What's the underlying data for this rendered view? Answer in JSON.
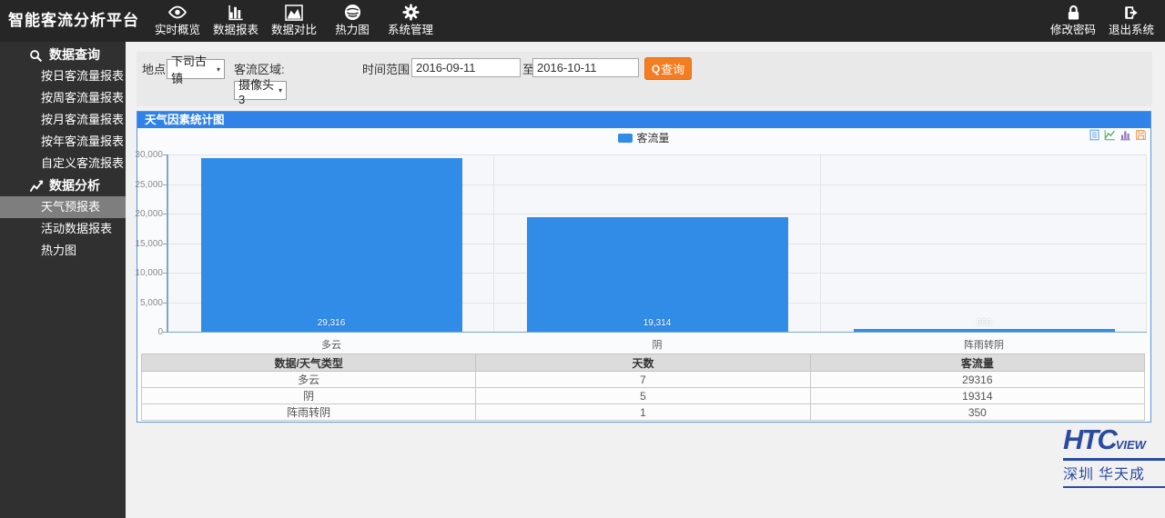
{
  "app": {
    "title": "智能客流分析平台"
  },
  "topnav": {
    "items": [
      {
        "id": "realtime",
        "label": "实时概览",
        "icon": "eye-icon"
      },
      {
        "id": "reports",
        "label": "数据报表",
        "icon": "bar-chart-icon"
      },
      {
        "id": "compare",
        "label": "数据对比",
        "icon": "area-chart-icon"
      },
      {
        "id": "heatmap",
        "label": "热力图",
        "icon": "heatmap-icon"
      },
      {
        "id": "system",
        "label": "系统管理",
        "icon": "gear-icon"
      }
    ],
    "right": [
      {
        "id": "change-password",
        "label": "修改密码",
        "icon": "lock-icon"
      },
      {
        "id": "logout",
        "label": "退出系统",
        "icon": "logout-icon"
      }
    ]
  },
  "sidebar": {
    "sections": [
      {
        "id": "data-query",
        "header": "数据查询",
        "icon": "search-icon",
        "items": [
          {
            "id": "daily-report",
            "label": "按日客流量报表"
          },
          {
            "id": "weekly-report",
            "label": "按周客流量报表"
          },
          {
            "id": "monthly-report",
            "label": "按月客流量报表"
          },
          {
            "id": "yearly-report",
            "label": "按年客流量报表"
          },
          {
            "id": "custom-report",
            "label": "自定义客流报表"
          }
        ]
      },
      {
        "id": "data-analysis",
        "header": "数据分析",
        "icon": "line-chart-icon",
        "items": [
          {
            "id": "weather-report",
            "label": "天气预报表",
            "selected": true
          },
          {
            "id": "activity-report",
            "label": "活动数据报表"
          },
          {
            "id": "heatmap",
            "label": "热力图"
          }
        ]
      }
    ]
  },
  "filters": {
    "location_label": "地点:",
    "location_value": "下司古镇",
    "region_label": "客流区域:",
    "region_value": "摄像头3",
    "time_label": "时间范围",
    "date_from": "2016-09-11",
    "to_label": "至",
    "date_to": "2016-10-11",
    "query_label": "查询",
    "query_icon": "Q",
    "caret": "▾"
  },
  "panel": {
    "title": "天气因素统计图",
    "legend": "客流量",
    "toolbox": [
      "data-view-icon",
      "line-chart-icon",
      "bar-chart-icon",
      "save-image-icon"
    ]
  },
  "chart_data": {
    "type": "bar",
    "title": "天气因素统计图",
    "series_name": "客流量",
    "categories": [
      "多云",
      "阴",
      "阵雨转阴"
    ],
    "values": [
      29316,
      19314,
      350
    ],
    "value_labels": [
      "29,316",
      "19,314",
      "350"
    ],
    "ylim": [
      0,
      30000
    ],
    "ytick_step": 5000,
    "yticks": [
      "30,000",
      "25,000",
      "20,000",
      "15,000",
      "10,000",
      "5,000",
      "0"
    ],
    "bar_color": "#318ce8",
    "legend_position": "top-center",
    "grid": true
  },
  "table": {
    "headers": [
      "数据/天气类型",
      "天数",
      "客流量"
    ],
    "rows": [
      [
        "多云",
        "7",
        "29316"
      ],
      [
        "阴",
        "5",
        "19314"
      ],
      [
        "阵雨转阴",
        "1",
        "350"
      ]
    ]
  },
  "footer": {
    "logo_main": "HTC",
    "logo_sub": "view",
    "logo_caption": "深圳 华天成"
  }
}
